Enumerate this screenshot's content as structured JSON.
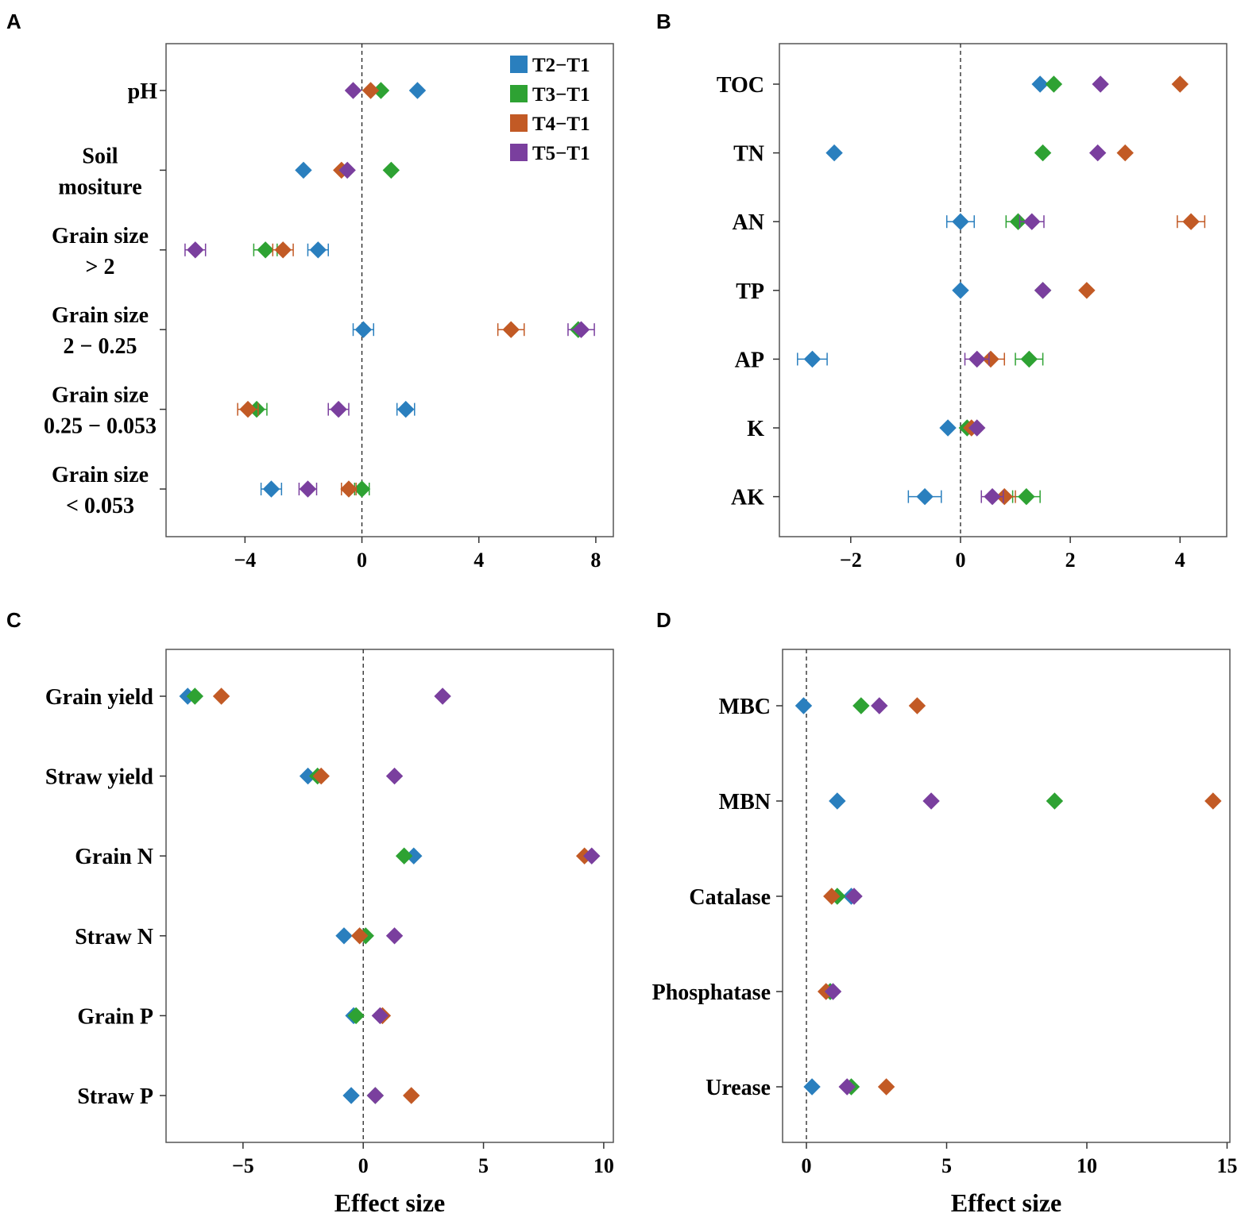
{
  "series_colors": {
    "T2−T1": "#2a7fbe",
    "T3−T1": "#2ea233",
    "T4−T1": "#c25a25",
    "T5−T1": "#7a3f9e"
  },
  "chart_data": [
    {
      "panel": "A",
      "type": "scatter",
      "xlabel": "",
      "xlim": [
        -6.7,
        8.6
      ],
      "xticks": [
        -4,
        0,
        4,
        8
      ],
      "xtick_labels": [
        "−4",
        "0",
        "4",
        "8"
      ],
      "legend": [
        "T2−T1",
        "T3−T1",
        "T4−T1",
        "T5−T1"
      ],
      "legend_position": "top-right",
      "categories": [
        [
          "pH"
        ],
        [
          "Soil",
          "mositure"
        ],
        [
          "Grain size",
          "> 2"
        ],
        [
          "Grain size",
          "2 − 0.25"
        ],
        [
          "Grain size",
          "0.25 − 0.053"
        ],
        [
          "Grain size",
          "< 0.053"
        ]
      ],
      "series": [
        {
          "name": "T2−T1",
          "values": [
            1.9,
            -2.0,
            -1.5,
            0.05,
            1.5,
            -3.1
          ],
          "err": [
            0,
            0,
            0.35,
            0.35,
            0.3,
            0.35
          ]
        },
        {
          "name": "T3−T1",
          "values": [
            0.65,
            1.0,
            -3.3,
            7.4,
            -3.6,
            0.0
          ],
          "err": [
            0,
            0,
            0.4,
            0,
            0.35,
            0.25
          ]
        },
        {
          "name": "T4−T1",
          "values": [
            0.3,
            -0.7,
            -2.7,
            5.1,
            -3.9,
            -0.45
          ],
          "err": [
            0,
            0,
            0.35,
            0.45,
            0.35,
            0.25
          ]
        },
        {
          "name": "T5−T1",
          "values": [
            -0.3,
            -0.5,
            -5.7,
            7.5,
            -0.8,
            -1.85
          ],
          "err": [
            0,
            0,
            0.35,
            0.45,
            0.35,
            0.3
          ]
        }
      ]
    },
    {
      "panel": "B",
      "type": "scatter",
      "xlabel": "",
      "xlim": [
        -3.3,
        4.85
      ],
      "xticks": [
        -2,
        0,
        2,
        4
      ],
      "xtick_labels": [
        "−2",
        "0",
        "2",
        "4"
      ],
      "categories": [
        [
          "TOC"
        ],
        [
          "TN"
        ],
        [
          "AN"
        ],
        [
          "TP"
        ],
        [
          "AP"
        ],
        [
          "K"
        ],
        [
          "AK"
        ]
      ],
      "series": [
        {
          "name": "T2−T1",
          "values": [
            1.45,
            -2.3,
            0.0,
            0.0,
            -2.7,
            -0.23,
            -0.65
          ],
          "err": [
            0,
            0,
            0.25,
            0,
            0.27,
            0,
            0.3
          ]
        },
        {
          "name": "T3−T1",
          "values": [
            1.7,
            1.5,
            1.05,
            1.5,
            1.25,
            0.12,
            1.2
          ],
          "err": [
            0,
            0,
            0.22,
            0,
            0.25,
            0,
            0.25
          ]
        },
        {
          "name": "T4−T1",
          "values": [
            4.0,
            3.0,
            4.2,
            2.3,
            0.55,
            0.2,
            0.8
          ],
          "err": [
            0,
            0,
            0.25,
            0,
            0.25,
            0,
            0.2
          ]
        },
        {
          "name": "T5−T1",
          "values": [
            2.55,
            2.5,
            1.3,
            1.5,
            0.3,
            0.3,
            0.58
          ],
          "err": [
            0,
            0,
            0.22,
            0,
            0.22,
            0,
            0.2
          ]
        }
      ]
    },
    {
      "panel": "C",
      "type": "scatter",
      "xlabel": "Effect size",
      "xlim": [
        -8.2,
        10.4
      ],
      "xticks": [
        -5,
        0,
        5,
        10
      ],
      "xtick_labels": [
        "−5",
        "0",
        "5",
        "10"
      ],
      "categories": [
        [
          "Grain yield"
        ],
        [
          "Straw yield"
        ],
        [
          "Grain N"
        ],
        [
          "Straw N"
        ],
        [
          "Grain P"
        ],
        [
          "Straw P"
        ]
      ],
      "series": [
        {
          "name": "T2−T1",
          "values": [
            -7.3,
            -2.3,
            2.1,
            -0.8,
            -0.4,
            -0.5
          ],
          "err": [
            0,
            0,
            0,
            0,
            0,
            0
          ]
        },
        {
          "name": "T3−T1",
          "values": [
            -7.0,
            -1.9,
            1.7,
            0.1,
            -0.3,
            0.5
          ],
          "err": [
            0,
            0,
            0,
            0,
            0,
            0
          ]
        },
        {
          "name": "T4−T1",
          "values": [
            -5.9,
            -1.75,
            9.2,
            -0.15,
            0.8,
            2.0
          ],
          "err": [
            0,
            0,
            0,
            0,
            0,
            0
          ]
        },
        {
          "name": "T5−T1",
          "values": [
            3.3,
            1.3,
            9.5,
            1.3,
            0.7,
            0.5
          ],
          "err": [
            0,
            0,
            0,
            0,
            0,
            0
          ]
        }
      ]
    },
    {
      "panel": "D",
      "type": "scatter",
      "xlabel": "Effect size",
      "xlim": [
        -0.85,
        15.1
      ],
      "xticks": [
        0,
        5,
        10,
        15
      ],
      "xtick_labels": [
        "0",
        "5",
        "10",
        "15"
      ],
      "categories": [
        [
          "MBC"
        ],
        [
          "MBN"
        ],
        [
          "Catalase"
        ],
        [
          "Phosphatase"
        ],
        [
          "Urease"
        ]
      ],
      "series": [
        {
          "name": "T2−T1",
          "values": [
            -0.1,
            1.1,
            1.6,
            0.85,
            0.2
          ],
          "err": [
            0,
            0,
            0,
            0,
            0
          ]
        },
        {
          "name": "T3−T1",
          "values": [
            1.95,
            8.85,
            1.1,
            0.85,
            1.6
          ],
          "err": [
            0,
            0,
            0,
            0,
            0
          ]
        },
        {
          "name": "T4−T1",
          "values": [
            3.95,
            14.5,
            0.9,
            0.7,
            2.85
          ],
          "err": [
            0,
            0,
            0,
            0,
            0
          ]
        },
        {
          "name": "T5−T1",
          "values": [
            2.6,
            4.45,
            1.7,
            0.95,
            1.45
          ],
          "err": [
            0,
            0,
            0,
            0,
            0
          ]
        }
      ]
    }
  ]
}
